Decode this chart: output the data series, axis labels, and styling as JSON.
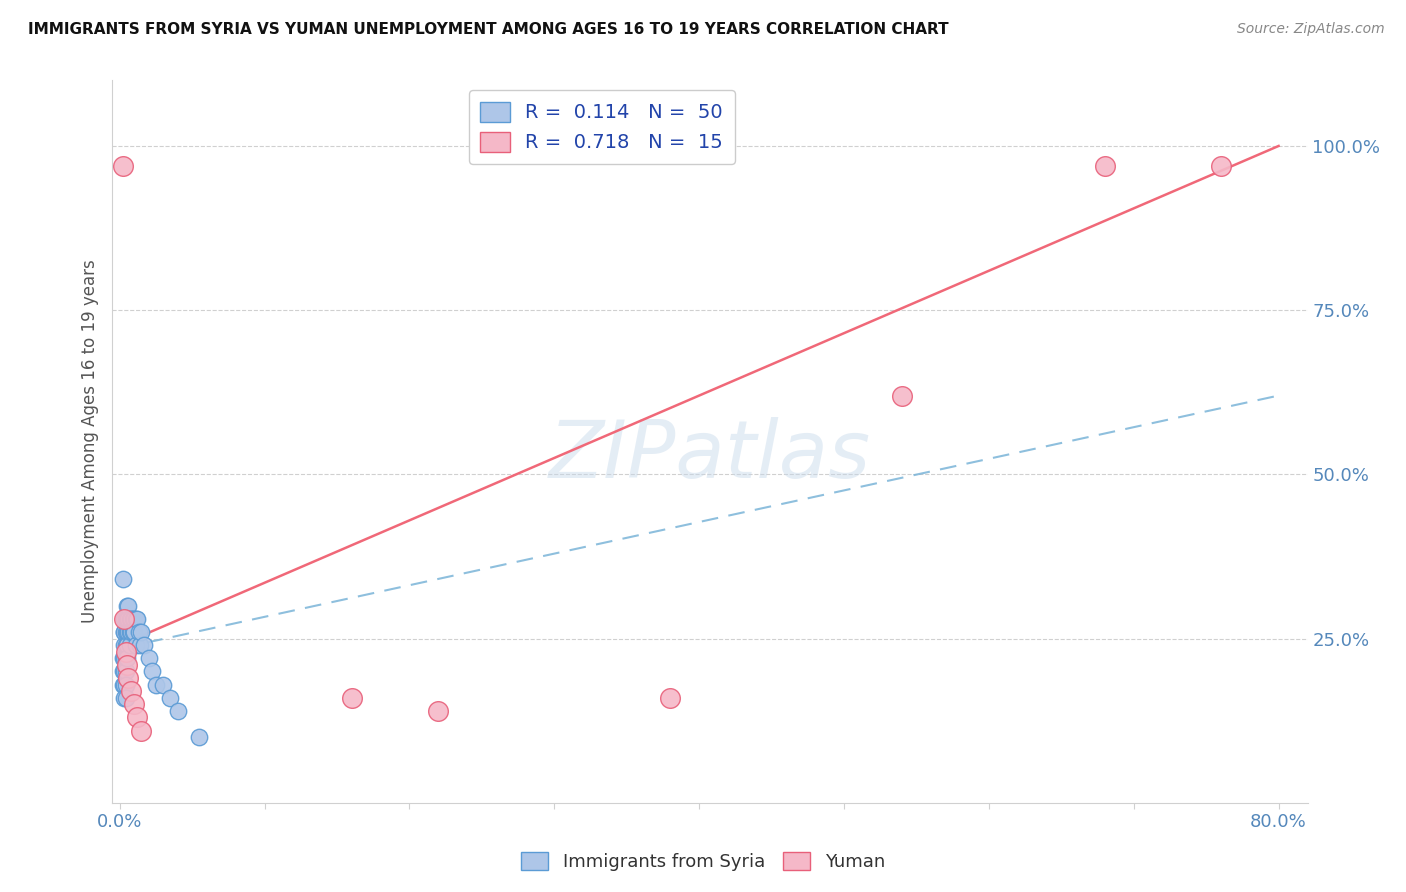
{
  "title": "IMMIGRANTS FROM SYRIA VS YUMAN UNEMPLOYMENT AMONG AGES 16 TO 19 YEARS CORRELATION CHART",
  "source": "Source: ZipAtlas.com",
  "ylabel": "Unemployment Among Ages 16 to 19 years",
  "x_tick_positions": [
    0.0,
    0.1,
    0.2,
    0.3,
    0.4,
    0.5,
    0.6,
    0.7,
    0.8
  ],
  "x_tick_labels": [
    "0.0%",
    "",
    "",
    "",
    "",
    "",
    "",
    "",
    "80.0%"
  ],
  "y_tick_vals_right": [
    0.25,
    0.5,
    0.75,
    1.0
  ],
  "y_tick_labels_right": [
    "25.0%",
    "50.0%",
    "75.0%",
    "100.0%"
  ],
  "blue_color": "#aec6e8",
  "pink_color": "#f5b8c8",
  "blue_edge_color": "#5b9bd5",
  "pink_edge_color": "#e8607a",
  "blue_line_color": "#7ab4d8",
  "pink_line_color": "#f06878",
  "watermark": "ZIPatlas",
  "blue_scatter_x": [
    0.002,
    0.002,
    0.002,
    0.003,
    0.003,
    0.003,
    0.003,
    0.003,
    0.003,
    0.003,
    0.003,
    0.004,
    0.004,
    0.004,
    0.004,
    0.004,
    0.004,
    0.004,
    0.005,
    0.005,
    0.005,
    0.005,
    0.005,
    0.006,
    0.006,
    0.006,
    0.007,
    0.007,
    0.007,
    0.008,
    0.008,
    0.009,
    0.009,
    0.01,
    0.01,
    0.011,
    0.011,
    0.012,
    0.013,
    0.014,
    0.015,
    0.017,
    0.02,
    0.022,
    0.025,
    0.03,
    0.035,
    0.04,
    0.055,
    0.002
  ],
  "blue_scatter_y": [
    0.22,
    0.2,
    0.18,
    0.28,
    0.26,
    0.24,
    0.22,
    0.2,
    0.18,
    0.16,
    0.26,
    0.28,
    0.26,
    0.24,
    0.22,
    0.2,
    0.18,
    0.16,
    0.3,
    0.28,
    0.26,
    0.24,
    0.22,
    0.3,
    0.28,
    0.26,
    0.28,
    0.26,
    0.24,
    0.28,
    0.26,
    0.28,
    0.26,
    0.28,
    0.26,
    0.28,
    0.24,
    0.28,
    0.26,
    0.24,
    0.26,
    0.24,
    0.22,
    0.2,
    0.18,
    0.18,
    0.16,
    0.14,
    0.1,
    0.34
  ],
  "pink_scatter_x": [
    0.002,
    0.003,
    0.004,
    0.005,
    0.006,
    0.008,
    0.01,
    0.012,
    0.015,
    0.16,
    0.22,
    0.38,
    0.54,
    0.68,
    0.76
  ],
  "pink_scatter_y": [
    0.97,
    0.28,
    0.23,
    0.21,
    0.19,
    0.17,
    0.15,
    0.13,
    0.11,
    0.16,
    0.14,
    0.16,
    0.62,
    0.97,
    0.97
  ],
  "blue_trend_x": [
    0.0,
    0.8
  ],
  "blue_trend_y": [
    0.235,
    0.62
  ],
  "pink_trend_x": [
    0.0,
    0.8
  ],
  "pink_trend_y": [
    0.24,
    1.0
  ],
  "xlim": [
    -0.005,
    0.82
  ],
  "ylim": [
    0.0,
    1.1
  ],
  "grid_color": "#d0d0d0",
  "spine_color": "#d0d0d0"
}
